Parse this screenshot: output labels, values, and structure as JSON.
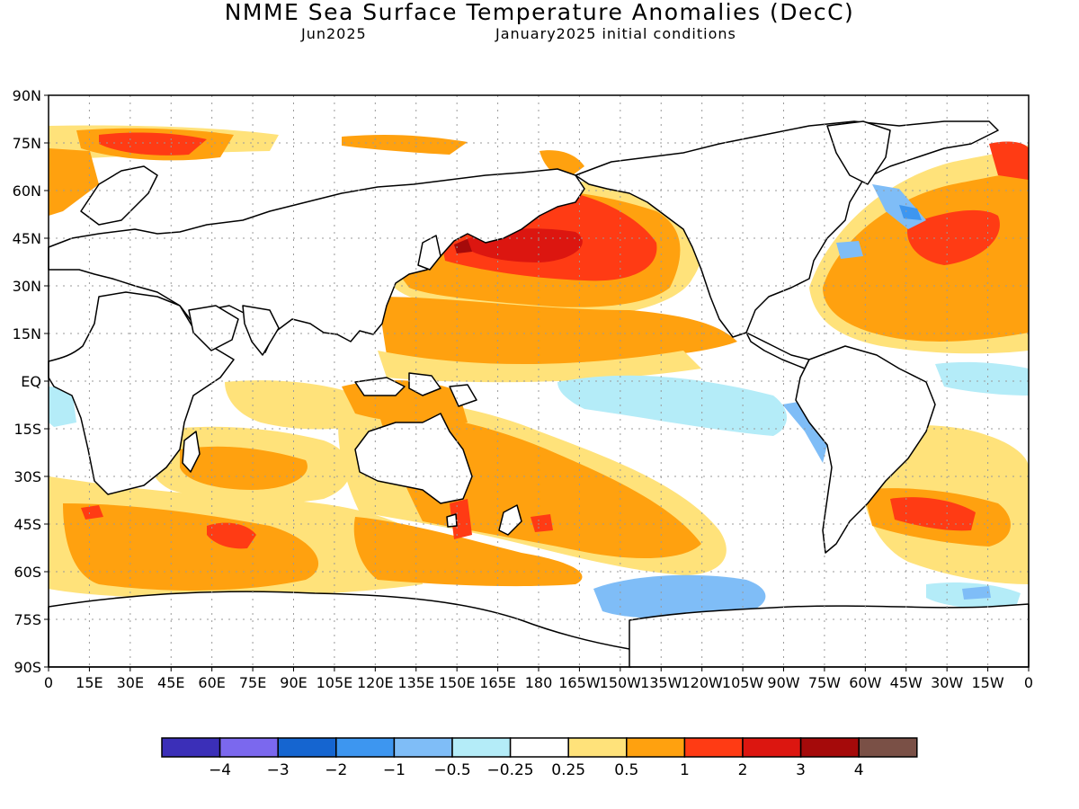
{
  "title": "NMME Sea Surface Temperature Anomalies (DecC)",
  "subtitle_left": "Jun2025",
  "subtitle_right": "January2025 initial conditions",
  "lat_labels": [
    "90N",
    "75N",
    "60N",
    "45N",
    "30N",
    "15N",
    "EQ",
    "15S",
    "30S",
    "45S",
    "60S",
    "75S",
    "90S"
  ],
  "lon_labels": [
    "0",
    "15E",
    "30E",
    "45E",
    "60E",
    "75E",
    "90E",
    "105E",
    "120E",
    "135E",
    "150E",
    "165E",
    "180",
    "165W",
    "150W",
    "135W",
    "120W",
    "105W",
    "90W",
    "75W",
    "60W",
    "45W",
    "30W",
    "15W",
    "0"
  ],
  "colors": {
    "land_outline": "#000000",
    "grid": "#b0b0b0",
    "c_neg4": "#3b2fb8",
    "c_neg3": "#7b68ee",
    "c_neg2": "#1565d0",
    "c_neg1": "#3d96f0",
    "c_neg05": "#7fbdf7",
    "c_neg025": "#b4ecf8",
    "c_zero": "#ffffff",
    "c_pos025": "#ffe27a",
    "c_pos05": "#ffa10f",
    "c_pos1": "#ff3b14",
    "c_pos2": "#dc1610",
    "c_pos3": "#a50a0a",
    "c_pos4": "#7a5046"
  },
  "legend": {
    "swatch_colors": [
      "#3b2fb8",
      "#7b68ee",
      "#1565d0",
      "#3d96f0",
      "#7fbdf7",
      "#b4ecf8",
      "#ffffff",
      "#ffe27a",
      "#ffa10f",
      "#ff3b14",
      "#dc1610",
      "#a50a0a",
      "#7a5046"
    ],
    "labels": [
      "-4",
      "-3",
      "-2",
      "-1",
      "-0.5",
      "-0.25",
      "0.25",
      "0.5",
      "1",
      "2",
      "3",
      "4"
    ]
  }
}
